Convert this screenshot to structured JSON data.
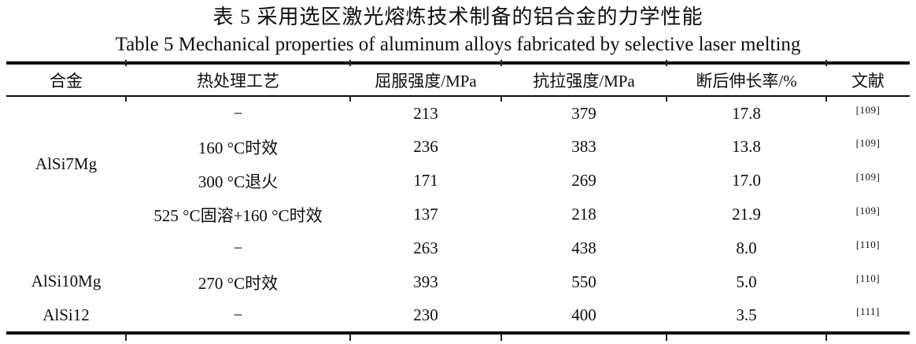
{
  "titles": {
    "zh": "表 5 采用选区激光熔炼技术制备的铝合金的力学性能",
    "en": "Table 5 Mechanical properties of aluminum alloys fabricated by selective laser melting"
  },
  "table": {
    "headers": [
      "合金",
      "热处理工艺",
      "屈服强度/MPa",
      "抗拉强度/MPa",
      "断后伸长率/%",
      "文献"
    ],
    "rows": [
      {
        "alloy": "AlSi7Mg",
        "treatment": "−",
        "yield_mpa": "213",
        "tensile_mpa": "379",
        "elongation_pct": "17.8",
        "reference": "[109]"
      },
      {
        "treatment": "160 °C时效",
        "yield_mpa": "236",
        "tensile_mpa": "383",
        "elongation_pct": "13.8",
        "reference": "[109]"
      },
      {
        "treatment": "300 °C退火",
        "yield_mpa": "171",
        "tensile_mpa": "269",
        "elongation_pct": "17.0",
        "reference": "[109]"
      },
      {
        "treatment": "525 °C固溶+160 °C时效",
        "yield_mpa": "137",
        "tensile_mpa": "218",
        "elongation_pct": "21.9",
        "reference": "[109]"
      },
      {
        "alloy": "AlSi10Mg",
        "treatment": "−",
        "yield_mpa": "263",
        "tensile_mpa": "438",
        "elongation_pct": "8.0",
        "reference": "[110]"
      },
      {
        "treatment": "270 °C时效",
        "yield_mpa": "393",
        "tensile_mpa": "550",
        "elongation_pct": "5.0",
        "reference": "[110]"
      },
      {
        "alloy": "AlSi12",
        "treatment": "−",
        "yield_mpa": "230",
        "tensile_mpa": "400",
        "elongation_pct": "3.5",
        "reference": "[111]"
      }
    ]
  }
}
